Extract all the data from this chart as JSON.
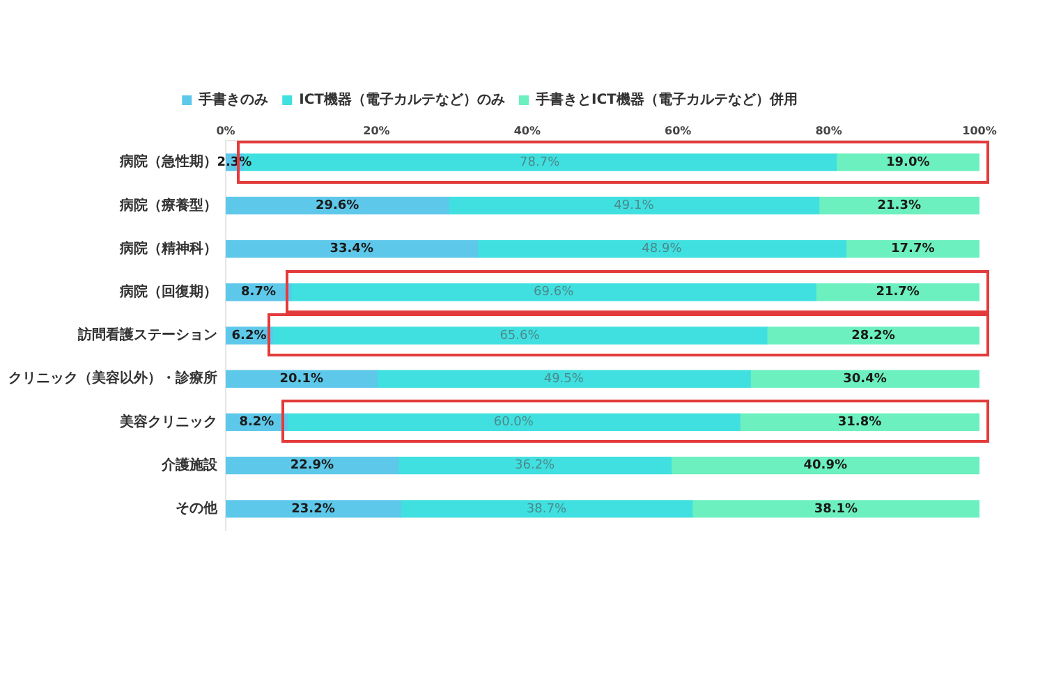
{
  "chart_data": {
    "type": "bar",
    "orientation": "horizontal",
    "stacked": true,
    "categories": [
      "病院（急性期）",
      "病院（療養型）",
      "病院（精神科）",
      "病院（回復期）",
      "訪問看護ステーション",
      "クリニック（美容以外）・診療所",
      "美容クリニック",
      "介護施設",
      "その他"
    ],
    "series": [
      {
        "name": "手書きのみ",
        "color": "#5ec8ea",
        "values": [
          2.3,
          29.6,
          33.4,
          8.7,
          6.2,
          20.1,
          8.2,
          22.9,
          23.2
        ],
        "value_labels": [
          "2.3%",
          "29.6%",
          "33.4%",
          "8.7%",
          "6.2%",
          "20.1%",
          "8.2%",
          "22.9%",
          "23.2%"
        ]
      },
      {
        "name": "ICT機器（電子カルテなど）のみ",
        "color": "#40e0e0",
        "values": [
          78.7,
          49.1,
          48.9,
          69.6,
          65.6,
          49.5,
          60.0,
          36.2,
          38.7
        ],
        "value_labels": [
          "78.7%",
          "49.1%",
          "48.9%",
          "69.6%",
          "65.6%",
          "49.5%",
          "60.0%",
          "36.2%",
          "38.7%"
        ]
      },
      {
        "name": "手書きとICT機器（電子カルテなど）併用",
        "color": "#6cf0c0",
        "values": [
          19.0,
          21.3,
          17.7,
          21.7,
          28.2,
          30.4,
          31.8,
          40.9,
          38.1
        ],
        "value_labels": [
          "19.0%",
          "21.3%",
          "17.7%",
          "21.7%",
          "28.2%",
          "30.4%",
          "31.8%",
          "40.9%",
          "38.1%"
        ]
      }
    ],
    "xlim": [
      0,
      100
    ],
    "xticks": [
      {
        "value": 0,
        "label": "0%"
      },
      {
        "value": 20,
        "label": "20%"
      },
      {
        "value": 40,
        "label": "40%"
      },
      {
        "value": 60,
        "label": "60%"
      },
      {
        "value": 80,
        "label": "80%"
      },
      {
        "value": 100,
        "label": "100%"
      }
    ],
    "legend": "top",
    "grid": false
  }
}
